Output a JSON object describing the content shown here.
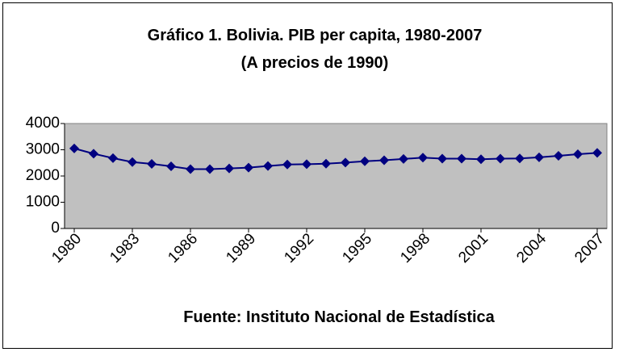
{
  "chart_data": {
    "type": "line",
    "title": "Gráfico 1. Bolivia. PIB per capita, 1980-2007",
    "subtitle": "(A precios de 1990)",
    "source": "Fuente: Instituto Nacional de Estadística",
    "x": [
      1980,
      1981,
      1982,
      1983,
      1984,
      1985,
      1986,
      1987,
      1988,
      1989,
      1990,
      1991,
      1992,
      1993,
      1994,
      1995,
      1996,
      1997,
      1998,
      1999,
      2000,
      2001,
      2002,
      2003,
      2004,
      2005,
      2006,
      2007
    ],
    "series": [
      {
        "name": "PIB per capita",
        "color": "#000080",
        "values": [
          3050,
          2850,
          2680,
          2530,
          2460,
          2370,
          2260,
          2260,
          2290,
          2320,
          2380,
          2440,
          2450,
          2470,
          2510,
          2560,
          2600,
          2650,
          2700,
          2660,
          2660,
          2640,
          2660,
          2670,
          2710,
          2770,
          2830,
          2880
        ]
      }
    ],
    "xlim": [
      1979.5,
      2007.5
    ],
    "xticks": [
      1980,
      1983,
      1986,
      1989,
      1992,
      1995,
      1998,
      2001,
      2004,
      2007
    ],
    "ylim": [
      0,
      4000
    ],
    "yticks": [
      0,
      1000,
      2000,
      3000,
      4000
    ],
    "plot_background": "#c0c0c0"
  }
}
